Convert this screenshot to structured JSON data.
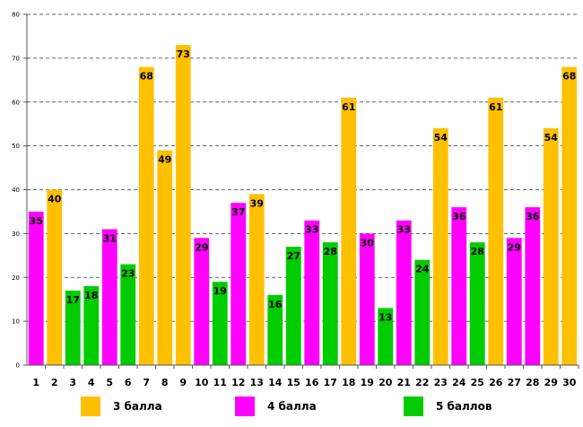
{
  "chart_data": {
    "type": "bar",
    "title": "",
    "xlabel": "",
    "ylabel": "",
    "ylim": [
      0,
      80
    ],
    "yticks": [
      0,
      10,
      20,
      30,
      40,
      50,
      60,
      70,
      80
    ],
    "grid": "horizontal-dashed",
    "legend_position": "bottom",
    "categories": [
      "1",
      "2",
      "3",
      "4",
      "5",
      "6",
      "7",
      "8",
      "9",
      "10",
      "11",
      "12",
      "13",
      "14",
      "15",
      "16",
      "17",
      "18",
      "19",
      "20",
      "21",
      "22",
      "23",
      "24",
      "25",
      "26",
      "27",
      "28",
      "29",
      "30"
    ],
    "values": [
      35,
      40,
      17,
      18,
      31,
      23,
      68,
      49,
      73,
      29,
      19,
      37,
      39,
      16,
      27,
      33,
      28,
      61,
      30,
      13,
      33,
      24,
      54,
      36,
      28,
      61,
      29,
      36,
      54,
      68
    ],
    "groups": [
      "4",
      "3",
      "5",
      "5",
      "4",
      "5",
      "3",
      "3",
      "3",
      "4",
      "5",
      "4",
      "3",
      "5",
      "5",
      "4",
      "5",
      "3",
      "4",
      "5",
      "4",
      "5",
      "3",
      "4",
      "5",
      "3",
      "4",
      "4",
      "3",
      "3"
    ],
    "legend": [
      {
        "key": "3",
        "label": "3 балла",
        "color": "#FFC000"
      },
      {
        "key": "4",
        "label": "4 балла",
        "color": "#FF00FF"
      },
      {
        "key": "5",
        "label": "5 баллов",
        "color": "#00CC00"
      }
    ]
  }
}
